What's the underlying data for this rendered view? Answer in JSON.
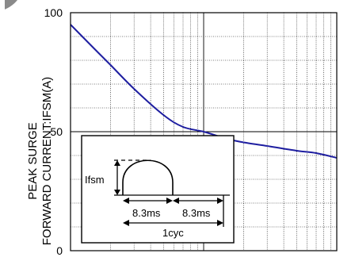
{
  "chart_data": {
    "type": "line",
    "title": "",
    "xlabel": "",
    "ylabel": "PEAK SURGE\nFORWARD CURRENT:IFSM(A)",
    "x_scale": "log",
    "xlim": [
      1,
      100
    ],
    "ylim": [
      0,
      100
    ],
    "y_ticks": [
      0,
      50,
      100
    ],
    "grid": true,
    "legend": "none",
    "colors": {
      "curve": "#1e1ea0",
      "grid": "#000000"
    },
    "series": [
      {
        "x": [
          1,
          1.5,
          2,
          3,
          5,
          7,
          10,
          15,
          20,
          30,
          50,
          70,
          100
        ],
        "y": [
          95,
          85,
          78,
          68,
          57,
          52,
          50,
          47,
          45.5,
          44,
          42,
          41,
          39
        ]
      }
    ],
    "inset": {
      "label_ifsm": "Ifsm",
      "label_half1": "8.3ms",
      "label_half2": "8.3ms",
      "label_cycle": "1cyc"
    }
  }
}
